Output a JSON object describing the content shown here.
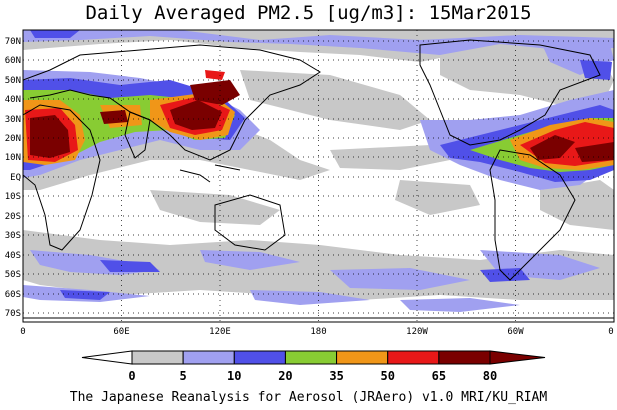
{
  "title": "Daily Averaged PM2.5 [ug/m3]: 15Mar2015",
  "footer": "The Japanese Reanalysis for Aerosol (JRAero) v1.0 MRI/KU_RIAM",
  "lat_labels": [
    "70N",
    "60N",
    "50N",
    "40N",
    "30N",
    "20N",
    "10N",
    "EQ",
    "10S",
    "20S",
    "30S",
    "40S",
    "50S",
    "60S",
    "70S"
  ],
  "lon_labels": [
    "0",
    "60E",
    "120E",
    "180",
    "120W",
    "60W",
    "0"
  ],
  "colorbar": {
    "bounds": [
      "0",
      "5",
      "10",
      "20",
      "35",
      "50",
      "65",
      "80"
    ],
    "colors": [
      "#ffffff",
      "#c8c8c8",
      "#a0a0f0",
      "#5050e8",
      "#88cc33",
      "#f09618",
      "#e81818",
      "#7a0000"
    ]
  }
}
